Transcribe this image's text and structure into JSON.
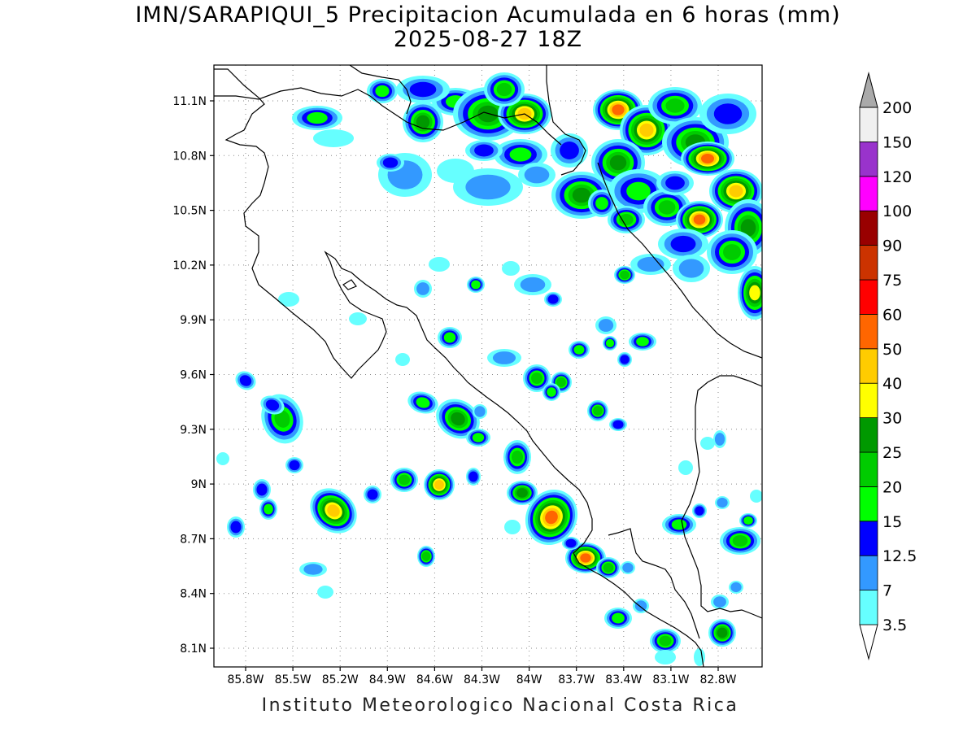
{
  "title": {
    "line1": "IMN/SARAPIQUI_5 Precipitacion Acumulada en 6 horas (mm)",
    "line2": "2025-08-27 18Z"
  },
  "footer": "Instituto Meteorologico Nacional Costa Rica",
  "map": {
    "lat_ticks": [
      "11.1N",
      "10.8N",
      "10.5N",
      "10.2N",
      "9.9N",
      "9.6N",
      "9.3N",
      "9N",
      "8.7N",
      "8.4N",
      "8.1N"
    ],
    "lon_ticks": [
      "85.8W",
      "85.5W",
      "85.2W",
      "84.9W",
      "84.6W",
      "84.3W",
      "84W",
      "83.7W",
      "83.4W",
      "83.1W",
      "82.8W"
    ],
    "grid": true
  },
  "colorbar": {
    "labels": [
      "3.5",
      "7",
      "12.5",
      "15",
      "20",
      "25",
      "30",
      "40",
      "50",
      "60",
      "75",
      "90",
      "100",
      "120",
      "150",
      "200"
    ],
    "colors": [
      "#ffffff",
      "#66ffff",
      "#3399ff",
      "#0000ff",
      "#00ff00",
      "#00cc00",
      "#009900",
      "#ffff00",
      "#ffcc00",
      "#ff6600",
      "#ff0000",
      "#cc3300",
      "#990000",
      "#ff00ff",
      "#9933cc",
      "#f0f0f0",
      "#aaaaaa"
    ]
  }
}
